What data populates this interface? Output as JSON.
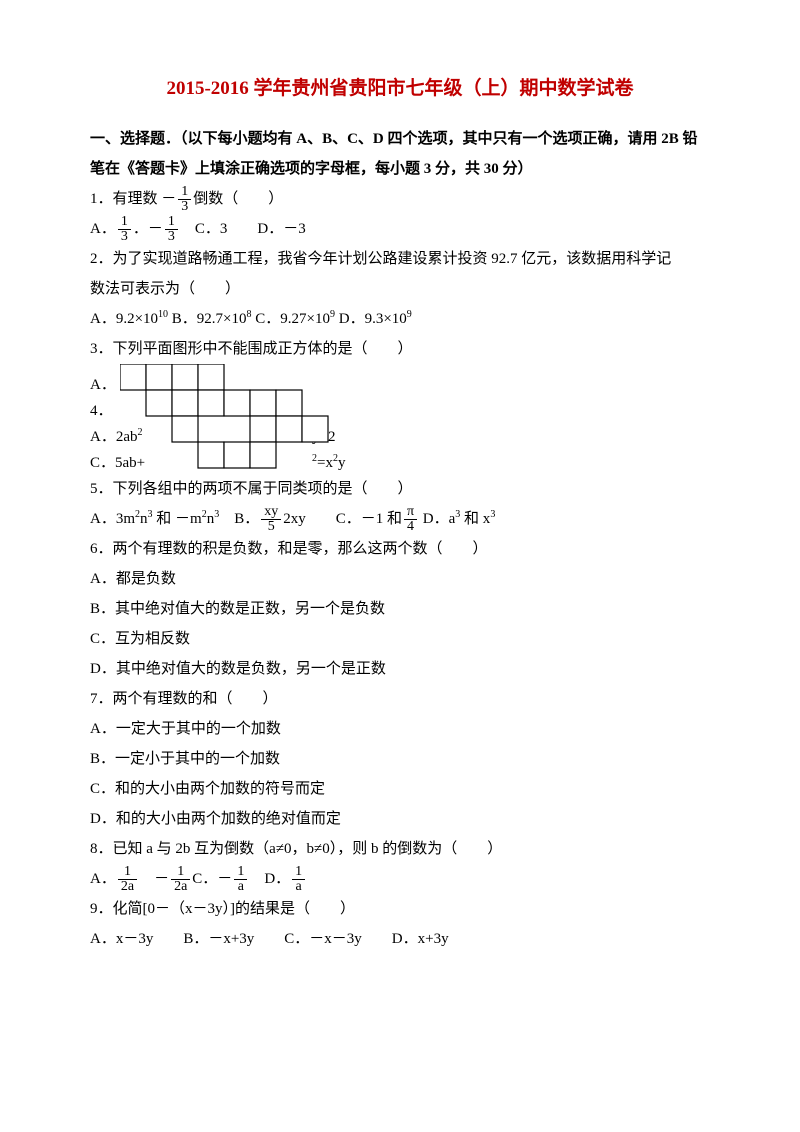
{
  "title_color": "#c00000",
  "title": "2015-2016 学年贵州省贵阳市七年级（上）期中数学试卷",
  "section1_l1": "一、选择题．（以下每小题均有 A、B、C、D 四个选项，其中只有一个选项正确，请用 2B 铅",
  "section1_l2": "笔在《答题卡》上填涂正确选项的字母框，每小题 3 分，共 30 分）",
  "q1_pre": "1．有理数 －",
  "q1_frac_n": "1",
  "q1_frac_d": "3",
  "q1_post": "倒数（　　）",
  "q1a_pre": "A．",
  "q1a_n": "1",
  "q1a_d": "3",
  "q1b_pre": "．－",
  "q1b_n": "1",
  "q1b_d": "3",
  "q1c": "　C．3　　D．－3",
  "q2_l1": "2．为了实现道路畅通工程，我省今年计划公路建设累计投资 92.7 亿元，该数据用科学记",
  "q2_l2": "数法可表示为（　　）",
  "q2_opts_a": "A．9.2×10",
  "q2_opts_a_sup": "10",
  "q2_opts_b": " B．92.7×10",
  "q2_opts_b_sup": "8",
  "q2_opts_c": " C．9.27×10",
  "q2_opts_c_sup": "9",
  "q2_opts_d": " D．9.3×10",
  "q2_opts_d_sup": "9",
  "q3": "3．下列平面图形中不能围成正方体的是（　　）",
  "overlay_a": "A．",
  "overlay_4": "4．",
  "overlay_4_tail": "）",
  "overlay_a2_pre": "A．2ab",
  "overlay_a2_sup": "2",
  "overlay_y2": "y=2",
  "overlay_c": "C．5ab+",
  "overlay_xy_pre": "2",
  "overlay_xy_post": "=x",
  "overlay_xy_sup": "2",
  "overlay_xy_end": "y",
  "q5": "5．下列各组中的两项不属于同类项的是（　　）",
  "q5a_pre": "A．3m",
  "q5a_s1": "2",
  "q5a_mid1": "n",
  "q5a_s2": "3",
  "q5a_mid2": " 和 －m",
  "q5a_s3": "2",
  "q5a_mid3": "n",
  "q5a_s4": "3",
  "q5b_pre": "　B．",
  "q5b_num": "xy",
  "q5b_den": "5",
  "q5b_post": "2xy　　C．－1 和",
  "q5c_num": "π",
  "q5c_den": "4",
  "q5d_pre": " D．a",
  "q5d_s1": "3",
  "q5d_mid": " 和 x",
  "q5d_s2": "3",
  "q6": "6．两个有理数的积是负数，和是零，那么这两个数（　　）",
  "q6a": "A．都是负数",
  "q6b": "B．其中绝对值大的数是正数，另一个是负数",
  "q6c": "C．互为相反数",
  "q6d": "D．其中绝对值大的数是负数，另一个是正数",
  "q7": "7．两个有理数的和（　　）",
  "q7a": "A．一定大于其中的一个加数",
  "q7b": "B．一定小于其中的一个加数",
  "q7c": "C．和的大小由两个加数的符号而定",
  "q7d": "D．和的大小由两个加数的绝对值而定",
  "q8": "8．已知 a 与 2b 互为倒数（a≠0，b≠0），则 b 的倒数为（　　）",
  "q8a_pre": "A．",
  "q8a_n": "1",
  "q8a_d": "2a",
  "q8b_pre": "　－",
  "q8b_n": "1",
  "q8b_d": "2a",
  "q8c_pre": "C．－",
  "q8c_n": "1",
  "q8c_d": "a",
  "q8d_pre": "　D．",
  "q8d_n": "1",
  "q8d_d": "a",
  "q9": "9．化简[0－（x－3y）]的结果是（　　）",
  "q9opts": "A．x－3y　　B．－x+3y　　C．－x－3y　　D．x+3y",
  "net": {
    "cell": 26,
    "stroke": "#000000",
    "fill": "#ffffff"
  }
}
